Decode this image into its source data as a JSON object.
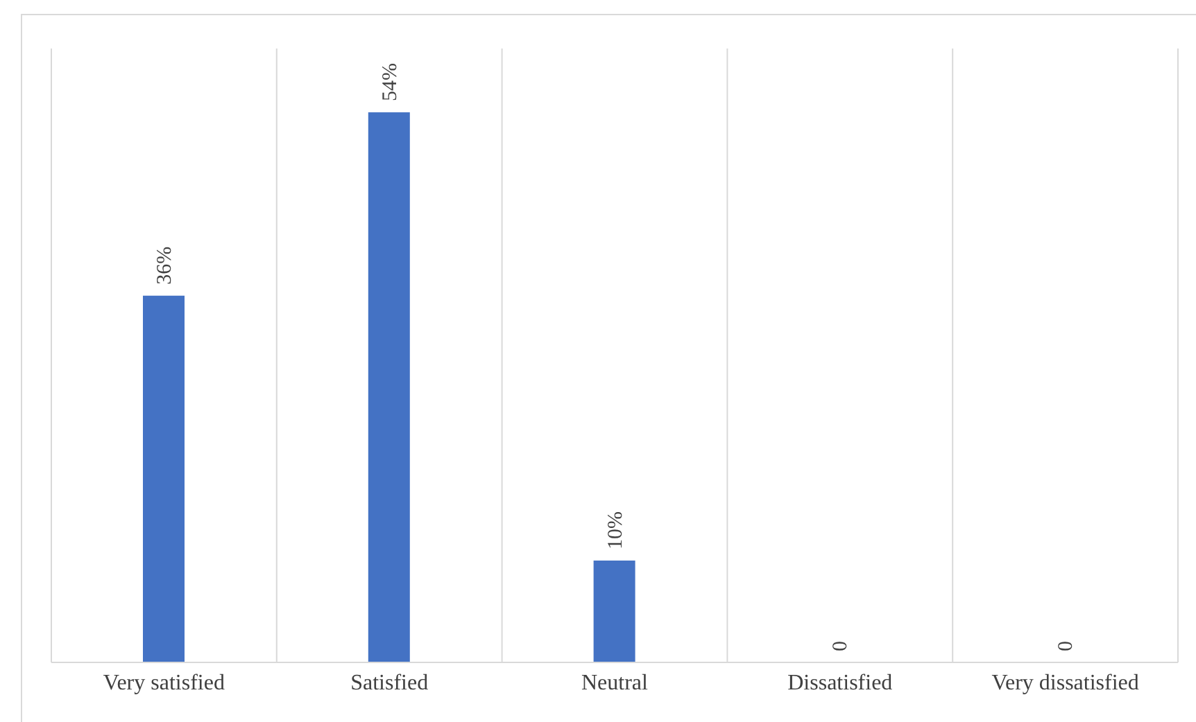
{
  "chart_data": {
    "type": "bar",
    "categories": [
      "Very satisfied",
      "Satisfied",
      "Neutral",
      "Dissatisfied",
      "Very dissatisfied"
    ],
    "values": [
      36,
      54,
      10,
      0,
      0
    ],
    "value_labels": [
      "36%",
      "54%",
      "10%",
      "0",
      "0"
    ],
    "color": "#4472c4",
    "grid": "x"
  }
}
